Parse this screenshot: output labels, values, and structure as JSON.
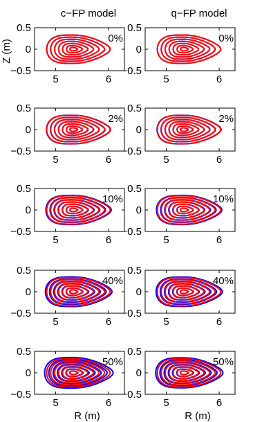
{
  "figure": {
    "column_titles": [
      "c−FP model",
      "q−FP model"
    ],
    "xlabel": "R (m)",
    "ylabel": "Z (m)"
  },
  "chart_data": {
    "type": "line",
    "description_of_layout": "5 rows x 2 columns of flux-surface contour panels",
    "xlabel": "R (m)",
    "ylabel": "Z (m)",
    "xlim": [
      4.6,
      6.3
    ],
    "ylim": [
      -0.5,
      0.5
    ],
    "xticks": [
      5,
      6
    ],
    "yticks": [
      -0.5,
      0,
      0.5
    ],
    "xtick_labels": [
      "5",
      "6"
    ],
    "ytick_labels": [
      "−0.5",
      "0",
      "0.5"
    ],
    "colors": {
      "series_a": "#0000ff",
      "series_b": "#ff0000"
    },
    "panels": [
      {
        "row": 0,
        "model": "c−FP model",
        "label": "0%",
        "spread": 0.0
      },
      {
        "row": 0,
        "model": "q−FP model",
        "label": "0%",
        "spread": 0.0
      },
      {
        "row": 1,
        "model": "c−FP model",
        "label": "2%",
        "spread": 0.01
      },
      {
        "row": 1,
        "model": "q−FP model",
        "label": "2%",
        "spread": 0.01
      },
      {
        "row": 2,
        "model": "c−FP model",
        "label": "10%",
        "spread": 0.03
      },
      {
        "row": 2,
        "model": "q−FP model",
        "label": "10%",
        "spread": 0.03
      },
      {
        "row": 3,
        "model": "c−FP model",
        "label": "40%",
        "spread": 0.05
      },
      {
        "row": 3,
        "model": "q−FP model",
        "label": "40%",
        "spread": 0.045
      },
      {
        "row": 4,
        "model": "c−FP model",
        "label": "50%",
        "spread": 0.08
      },
      {
        "row": 4,
        "model": "q−FP model",
        "label": "50%",
        "spread": 0.06
      }
    ],
    "surfaces": {
      "magnetic_axis_R": 5.33,
      "outer_boundary_R": [
        4.83,
        6.03
      ],
      "outer_boundary_Z": [
        -0.33,
        0.33
      ],
      "levels": [
        1.0,
        0.85,
        0.7,
        0.55,
        0.4,
        0.25,
        0.12
      ]
    }
  }
}
